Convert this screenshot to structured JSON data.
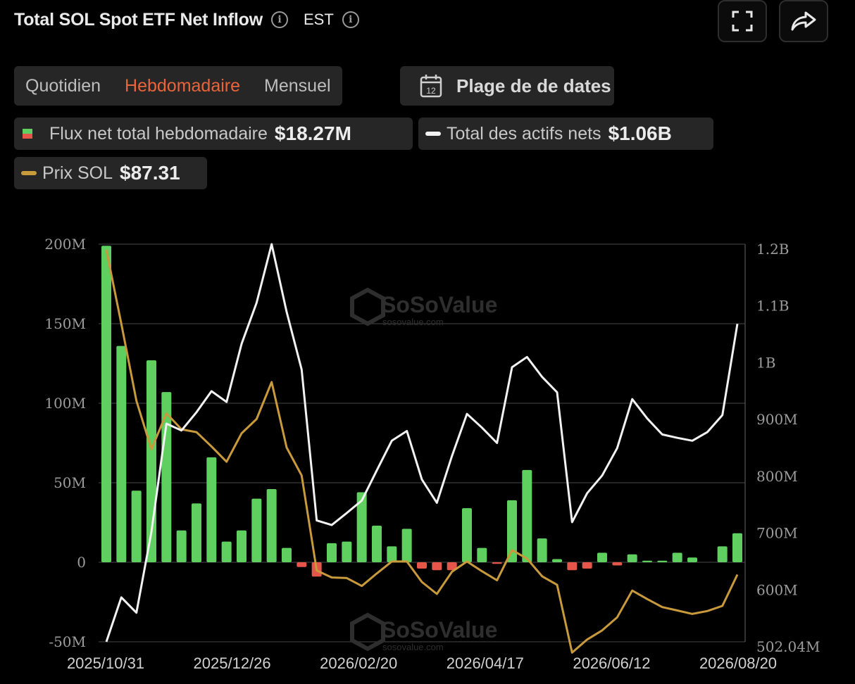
{
  "header": {
    "title": "Total SOL Spot ETF Net Inflow",
    "timezone": "EST"
  },
  "periods": {
    "items": [
      "Quotidien",
      "Hebdomadaire",
      "Mensuel"
    ],
    "active_index": 1
  },
  "date_range": {
    "label": "Plage de de dates",
    "icon_text": "12"
  },
  "legend": {
    "net_flow": {
      "label": "Flux net total hebdomadaire",
      "value": "$18.27M"
    },
    "net_assets": {
      "label": "Total des actifs nets",
      "value": "$1.06B"
    },
    "price": {
      "label": "Prix SOL",
      "value": "$87.31"
    }
  },
  "watermark": {
    "name": "SoSoValue",
    "url": "sosovalue.com"
  },
  "colors": {
    "positive": "#5fcf5f",
    "negative": "#e5554a",
    "assets_line": "#f2f2f2",
    "price_line": "#c99a3c",
    "accent": "#e9643a"
  },
  "chart_data": {
    "type": "bar",
    "x_tick_labels": [
      "2025/10/31",
      "2025/12/26",
      "2026/02/20",
      "2026/04/17",
      "2026/06/12",
      "2026/08/20"
    ],
    "left_axis": {
      "ticks": [
        "200M",
        "150M",
        "100M",
        "50M",
        "0",
        "-50M"
      ],
      "range": [
        -50,
        200
      ],
      "unit": "M USD"
    },
    "right_axis": {
      "ticks": [
        "1.2B",
        "1.1B",
        "1B",
        "900M",
        "800M",
        "700M",
        "600M",
        "502.04M"
      ],
      "range": [
        502.04,
        1200
      ],
      "unit": "M USD"
    },
    "series": [
      {
        "name": "Flux net total hebdomadaire",
        "kind": "bar",
        "axis": "left",
        "values": [
          199,
          136,
          45,
          127,
          107,
          20,
          37,
          66,
          13,
          20,
          40,
          46,
          9,
          -3,
          -9,
          12,
          13,
          44,
          23,
          10,
          21,
          -4,
          -5,
          -5,
          34,
          9,
          -1,
          39,
          58,
          15,
          2,
          -5,
          -4,
          6,
          -2,
          5,
          1,
          1,
          6,
          3,
          0,
          10,
          18.27
        ]
      },
      {
        "name": "Total des actifs nets",
        "kind": "line",
        "axis": "right",
        "values": [
          502,
          580,
          553,
          695,
          885,
          873,
          905,
          942,
          923,
          1025,
          1097,
          1200,
          1081,
          980,
          715,
          707,
          728,
          750,
          803,
          855,
          872,
          787,
          746,
          828,
          902,
          878,
          851,
          984,
          1002,
          967,
          940,
          712,
          763,
          794,
          842,
          928,
          894,
          866,
          860,
          855,
          870,
          900,
          1060
        ]
      },
      {
        "name": "Prix SOL",
        "kind": "line",
        "axis": "right",
        "values": [
          1190,
          1060,
          925,
          840,
          903,
          875,
          870,
          845,
          818,
          868,
          893,
          958,
          843,
          794,
          627,
          615,
          614,
          600,
          622,
          643,
          643,
          607,
          586,
          625,
          643,
          626,
          610,
          663,
          648,
          617,
          602,
          483,
          506,
          522,
          545,
          592,
          577,
          563,
          557,
          551,
          556,
          565,
          620
        ]
      }
    ]
  }
}
